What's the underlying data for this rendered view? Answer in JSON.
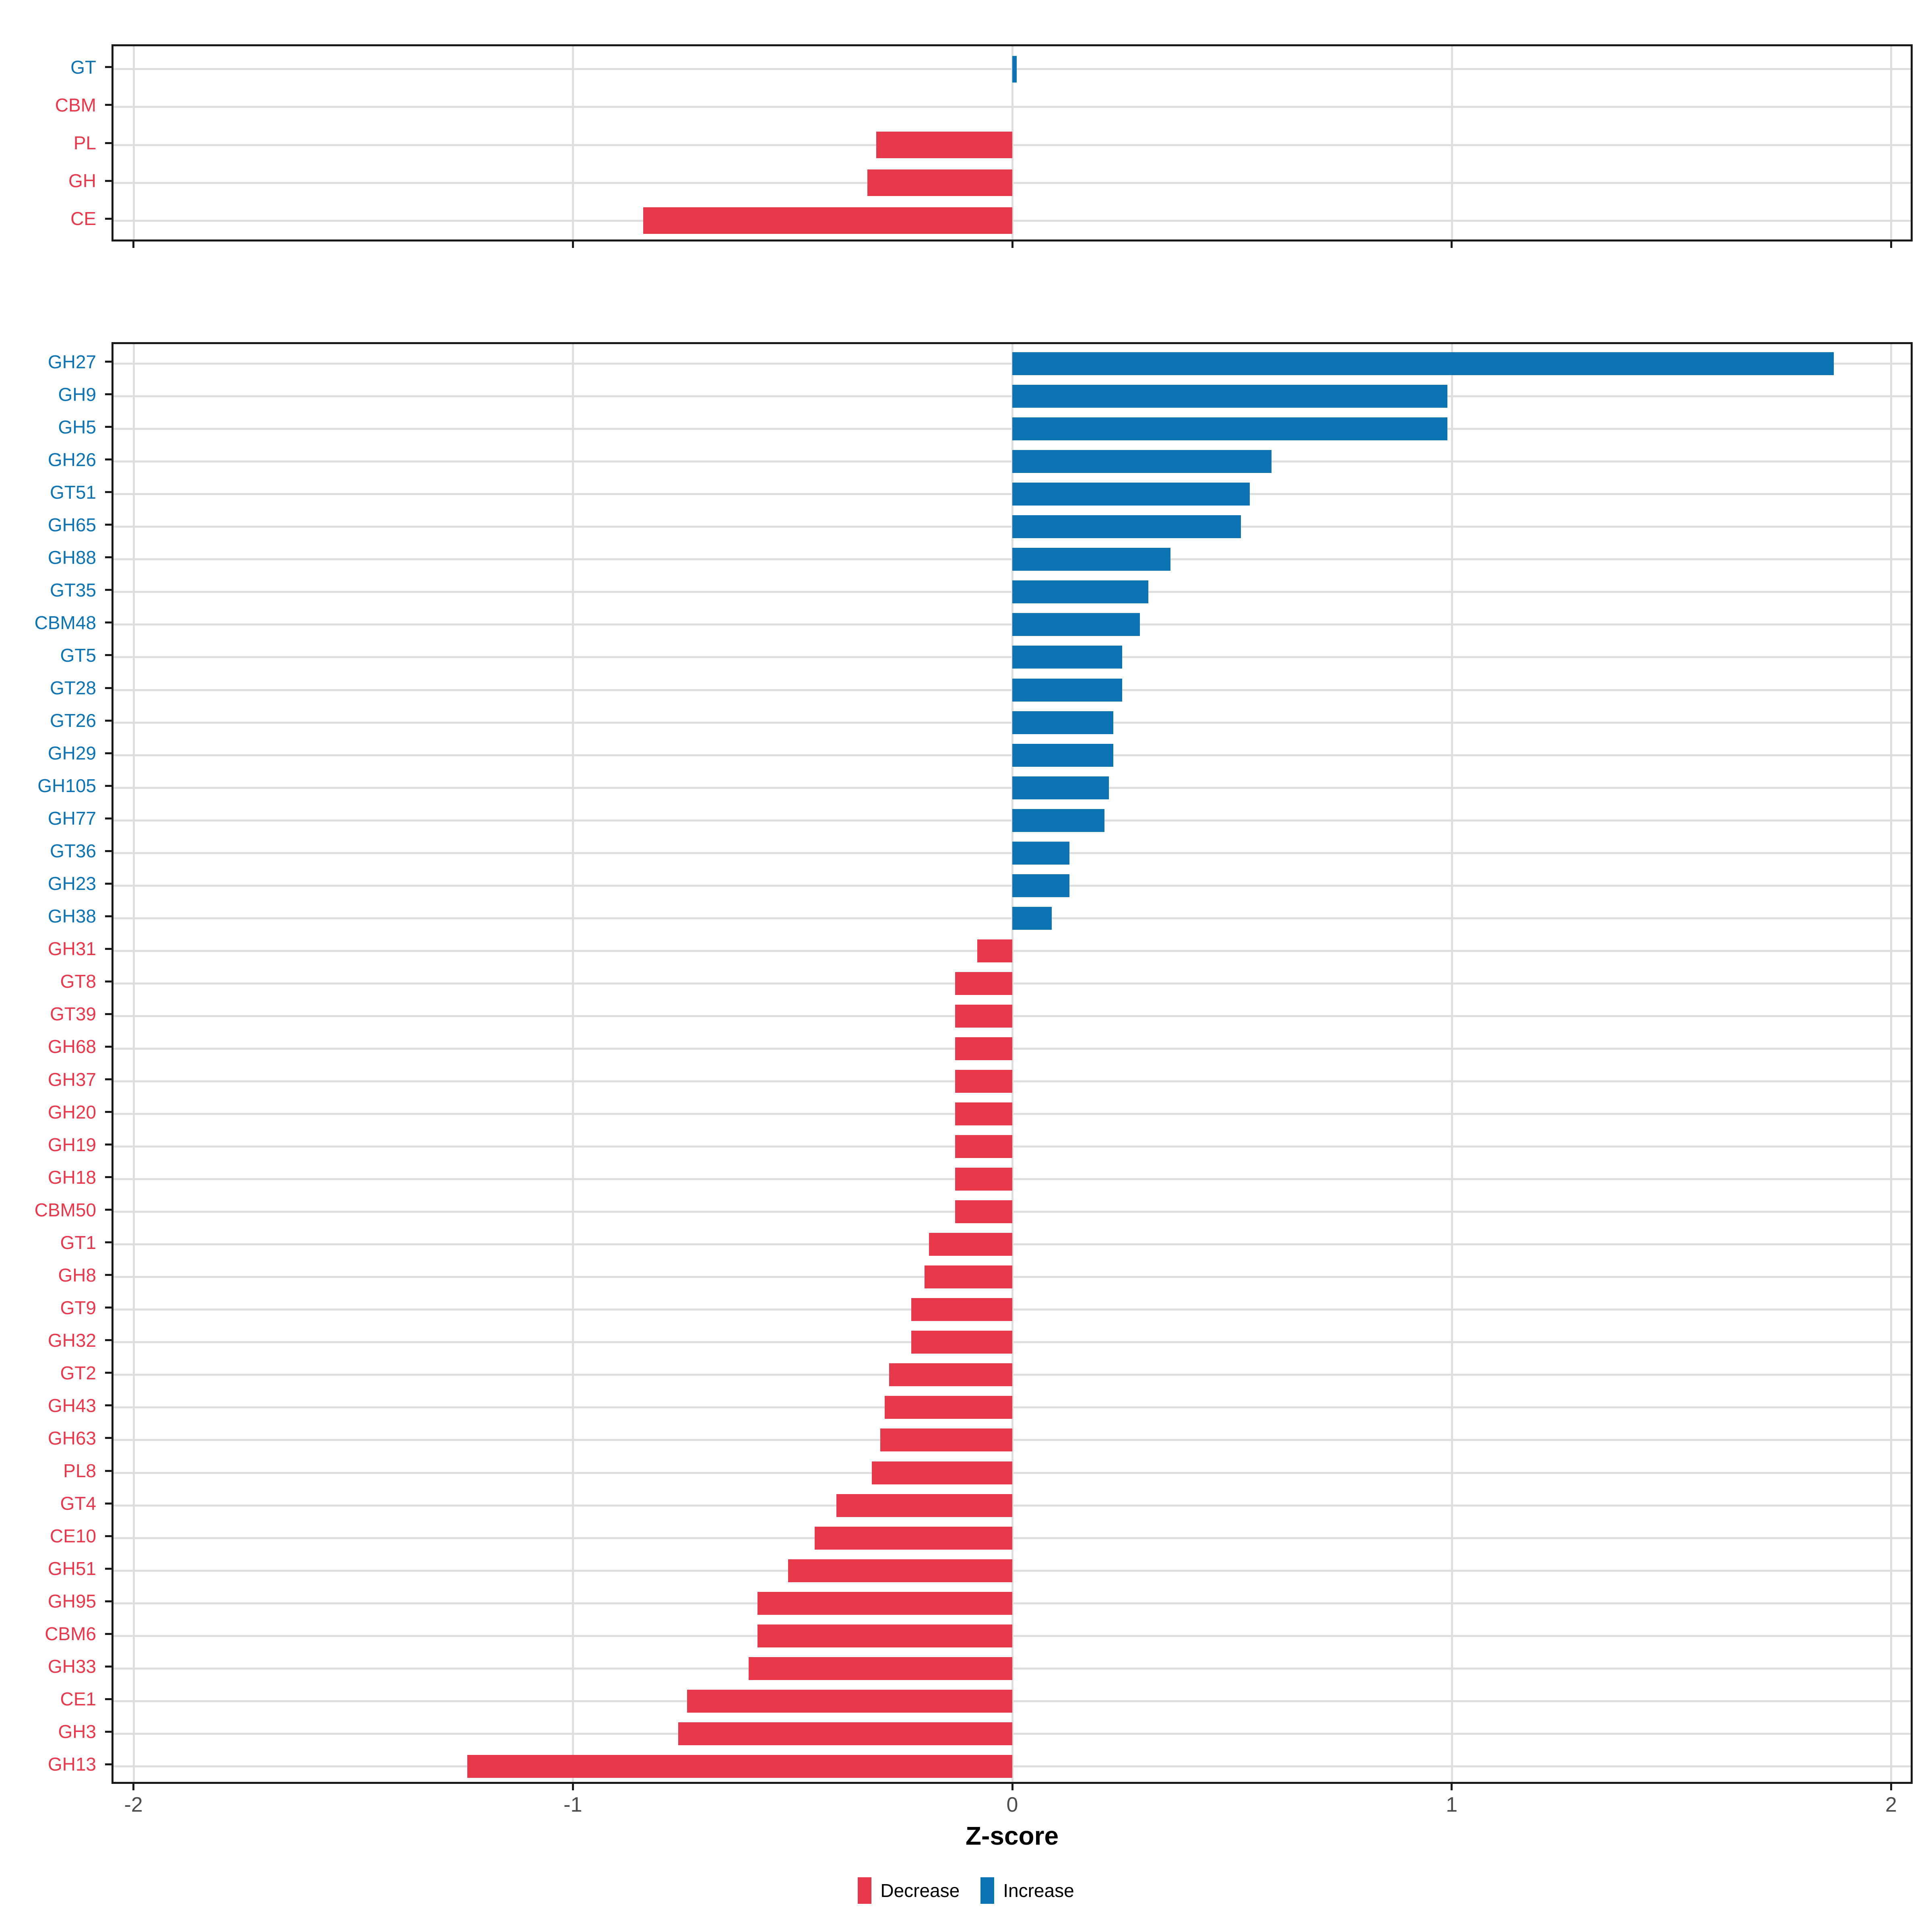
{
  "figure": {
    "background": "#FFFFFF"
  },
  "colors": {
    "increase": "#0E73B2",
    "decrease": "#E7394B",
    "gridline": "#DEDEDE",
    "axis_text": "#4D4D4D",
    "panel_border": "#1A1A1A",
    "tick": "#1A1A1A"
  },
  "x_axis": {
    "label": "Z-score",
    "tick_labels": [
      "-2",
      "-1",
      "0",
      "1",
      "2"
    ],
    "tick_values": [
      -2,
      -1,
      0,
      1,
      2
    ],
    "range": [
      -2.05,
      2.05
    ],
    "grid": "major-vertical-and-row-lines"
  },
  "legend": {
    "items": [
      {
        "label": "Decrease",
        "color_key": "decrease"
      },
      {
        "label": "Increase",
        "color_key": "increase"
      }
    ],
    "position": "bottom-center"
  },
  "chart_data": [
    {
      "type": "bar",
      "orientation": "horizontal",
      "panel": "top",
      "title": "",
      "xlabel": "Z-score",
      "xlim": [
        -2.05,
        2.05
      ],
      "categories": [
        "GT",
        "CBM",
        "PL",
        "GH",
        "CE"
      ],
      "values": [
        0.01,
        0.0,
        -0.31,
        -0.33,
        -0.84
      ],
      "directions": [
        "increase",
        "decrease",
        "decrease",
        "decrease",
        "decrease"
      ]
    },
    {
      "type": "bar",
      "orientation": "horizontal",
      "panel": "bottom",
      "title": "",
      "xlabel": "Z-score",
      "xlim": [
        -2.05,
        2.05
      ],
      "categories": [
        "GH27",
        "GH9",
        "GH5",
        "GH26",
        "GT51",
        "GH65",
        "GH88",
        "GT35",
        "CBM48",
        "GT5",
        "GT28",
        "GT26",
        "GH29",
        "GH105",
        "GH77",
        "GT36",
        "GH23",
        "GH38",
        "GH31",
        "GT8",
        "GT39",
        "GH68",
        "GH37",
        "GH20",
        "GH19",
        "GH18",
        "CBM50",
        "GT1",
        "GH8",
        "GT9",
        "GH32",
        "GT2",
        "GH43",
        "GH63",
        "PL8",
        "GT4",
        "CE10",
        "GH51",
        "GH95",
        "CBM6",
        "GH33",
        "CE1",
        "GH3",
        "GH13"
      ],
      "values": [
        1.87,
        0.99,
        0.99,
        0.59,
        0.54,
        0.52,
        0.36,
        0.31,
        0.29,
        0.25,
        0.25,
        0.23,
        0.23,
        0.22,
        0.21,
        0.13,
        0.13,
        0.09,
        -0.08,
        -0.13,
        -0.13,
        -0.13,
        -0.13,
        -0.13,
        -0.13,
        -0.13,
        -0.13,
        -0.19,
        -0.2,
        -0.23,
        -0.23,
        -0.28,
        -0.29,
        -0.3,
        -0.32,
        -0.4,
        -0.45,
        -0.51,
        -0.58,
        -0.58,
        -0.6,
        -0.74,
        -0.76,
        -1.24
      ],
      "directions": [
        "increase",
        "increase",
        "increase",
        "increase",
        "increase",
        "increase",
        "increase",
        "increase",
        "increase",
        "increase",
        "increase",
        "increase",
        "increase",
        "increase",
        "increase",
        "increase",
        "increase",
        "increase",
        "decrease",
        "decrease",
        "decrease",
        "decrease",
        "decrease",
        "decrease",
        "decrease",
        "decrease",
        "decrease",
        "decrease",
        "decrease",
        "decrease",
        "decrease",
        "decrease",
        "decrease",
        "decrease",
        "decrease",
        "decrease",
        "decrease",
        "decrease",
        "decrease",
        "decrease",
        "decrease",
        "decrease",
        "decrease",
        "decrease"
      ]
    }
  ]
}
